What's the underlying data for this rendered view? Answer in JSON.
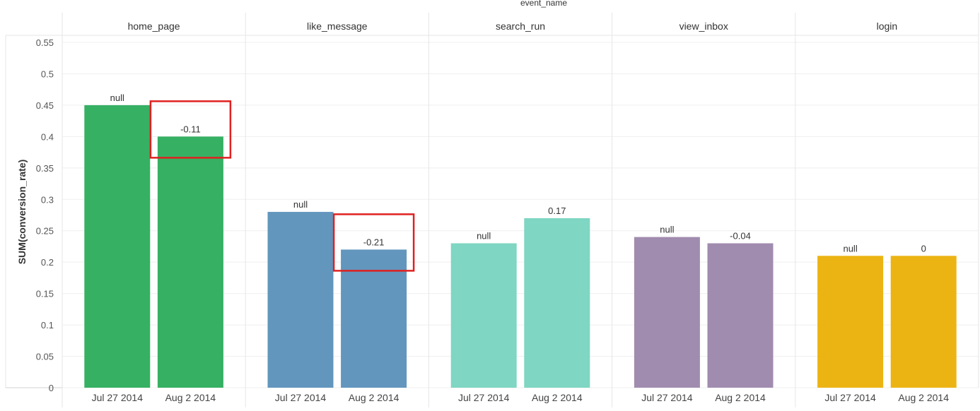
{
  "chart_data": {
    "type": "bar",
    "column_header": "event_name",
    "ylabel": "SUM(conversion_rate)",
    "ylim": [
      0,
      0.55
    ],
    "yticks": [
      0,
      0.05,
      0.1,
      0.15,
      0.2,
      0.25,
      0.3,
      0.35,
      0.4,
      0.45,
      0.5,
      0.55
    ],
    "ytick_labels": [
      "0",
      "0.05",
      "0.1",
      "0.15",
      "0.2",
      "0.25",
      "0.3",
      "0.35",
      "0.4",
      "0.45",
      "0.5",
      "0.55"
    ],
    "categories": [
      "Jul 27 2014",
      "Aug 2 2014"
    ],
    "grid": true,
    "panels": [
      {
        "name": "home_page",
        "color": "#36b063",
        "values": [
          0.45,
          0.4
        ],
        "labels": [
          "null",
          "-0.11"
        ],
        "highlight": [
          false,
          true
        ]
      },
      {
        "name": "like_message",
        "color": "#6296bd",
        "values": [
          0.28,
          0.22
        ],
        "labels": [
          "null",
          "-0.21"
        ],
        "highlight": [
          false,
          true
        ]
      },
      {
        "name": "search_run",
        "color": "#7fd6c2",
        "values": [
          0.23,
          0.27
        ],
        "labels": [
          "null",
          "0.17"
        ],
        "highlight": [
          false,
          false
        ]
      },
      {
        "name": "view_inbox",
        "color": "#a08caf",
        "values": [
          0.24,
          0.23
        ],
        "labels": [
          "null",
          "-0.04"
        ],
        "highlight": [
          false,
          false
        ]
      },
      {
        "name": "login",
        "color": "#ecb413",
        "values": [
          0.21,
          0.21
        ],
        "labels": [
          "null",
          "0"
        ],
        "highlight": [
          false,
          false
        ]
      }
    ],
    "highlight_color": "#e02020"
  }
}
